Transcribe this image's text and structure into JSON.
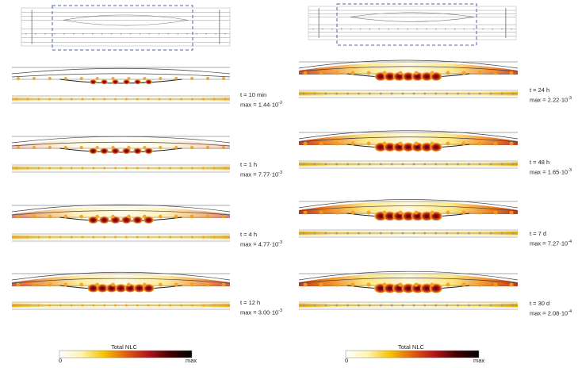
{
  "panels": [
    {
      "id": "left",
      "snapshots": [
        {
          "time": "t = 10 min",
          "max_mantissa": "1.44",
          "max_exp": "-2",
          "intensity": 0.25
        },
        {
          "time": "t = 1 h",
          "max_mantissa": "7.77",
          "max_exp": "-3",
          "intensity": 0.45
        },
        {
          "time": "t = 4 h",
          "max_mantissa": "4.77",
          "max_exp": "-3",
          "intensity": 0.65
        },
        {
          "time": "t = 12 h",
          "max_mantissa": "3.00",
          "max_exp": "-3",
          "intensity": 0.8
        }
      ]
    },
    {
      "id": "right",
      "snapshots": [
        {
          "time": "t = 24 h",
          "max_mantissa": "2.22",
          "max_exp": "-3",
          "intensity": 0.85
        },
        {
          "time": "t = 48 h",
          "max_mantissa": "1.65",
          "max_exp": "-3",
          "intensity": 0.9
        },
        {
          "time": "t = 7 d",
          "max_mantissa": "7.27",
          "max_exp": "-4",
          "intensity": 0.95
        },
        {
          "time": "t = 30 d",
          "max_mantissa": "2.08",
          "max_exp": "-4",
          "intensity": 1.0
        }
      ]
    }
  ],
  "colorbar": {
    "title": "Total NLC",
    "min_label": "0",
    "max_label": "max",
    "colors": [
      "#ffffff",
      "#fff3b0",
      "#f5c400",
      "#e06010",
      "#b3141a",
      "#400000",
      "#000000"
    ]
  }
}
